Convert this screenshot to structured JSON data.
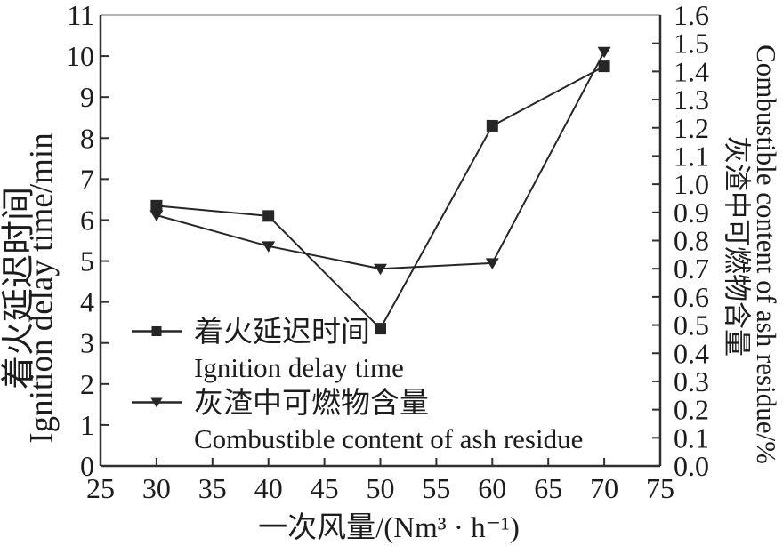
{
  "chart_data": {
    "type": "line",
    "x": [
      30,
      40,
      50,
      60,
      70
    ],
    "series": [
      {
        "name_zh": "着火延迟时间",
        "name_en": "Ignition delay time",
        "marker": "square",
        "axis": "left",
        "values": [
          6.35,
          6.1,
          3.35,
          8.3,
          9.75
        ]
      },
      {
        "name_zh": "灰渣中可燃物含量",
        "name_en": "Combustible content of ash residue",
        "marker": "triangle-down",
        "axis": "right",
        "values": [
          0.89,
          0.78,
          0.7,
          0.72,
          1.47
        ]
      }
    ],
    "x_axis": {
      "label": "一次风量/(Nm³ · h⁻¹)",
      "min": 25,
      "max": 75,
      "ticks": [
        "25",
        "30",
        "35",
        "40",
        "45",
        "50",
        "55",
        "60",
        "65",
        "70",
        "75"
      ]
    },
    "y_left": {
      "label_zh": "着火延迟时间",
      "label_en": "Ignition delay time/min",
      "min": 0,
      "max": 11,
      "ticks": [
        "0",
        "1",
        "2",
        "3",
        "4",
        "5",
        "6",
        "7",
        "8",
        "9",
        "10",
        "11"
      ]
    },
    "y_right": {
      "label_zh": "灰渣中可燃物含量",
      "label_en": "Combustible content of ash residue/%",
      "min": 0,
      "max": 1.6,
      "ticks": [
        "0.0",
        "0.1",
        "0.2",
        "0.3",
        "0.4",
        "0.5",
        "0.6",
        "0.7",
        "0.8",
        "0.9",
        "1.0",
        "1.1",
        "1.2",
        "1.3",
        "1.4",
        "1.5",
        "1.6"
      ]
    },
    "legend_position": "inside-bottom-left",
    "grid": false,
    "colors": {
      "series": "#262626",
      "text": "#1c1c1c",
      "axis": "#2f2f2f",
      "top_border": "#9a9a9a",
      "background": "#ffffff"
    }
  }
}
